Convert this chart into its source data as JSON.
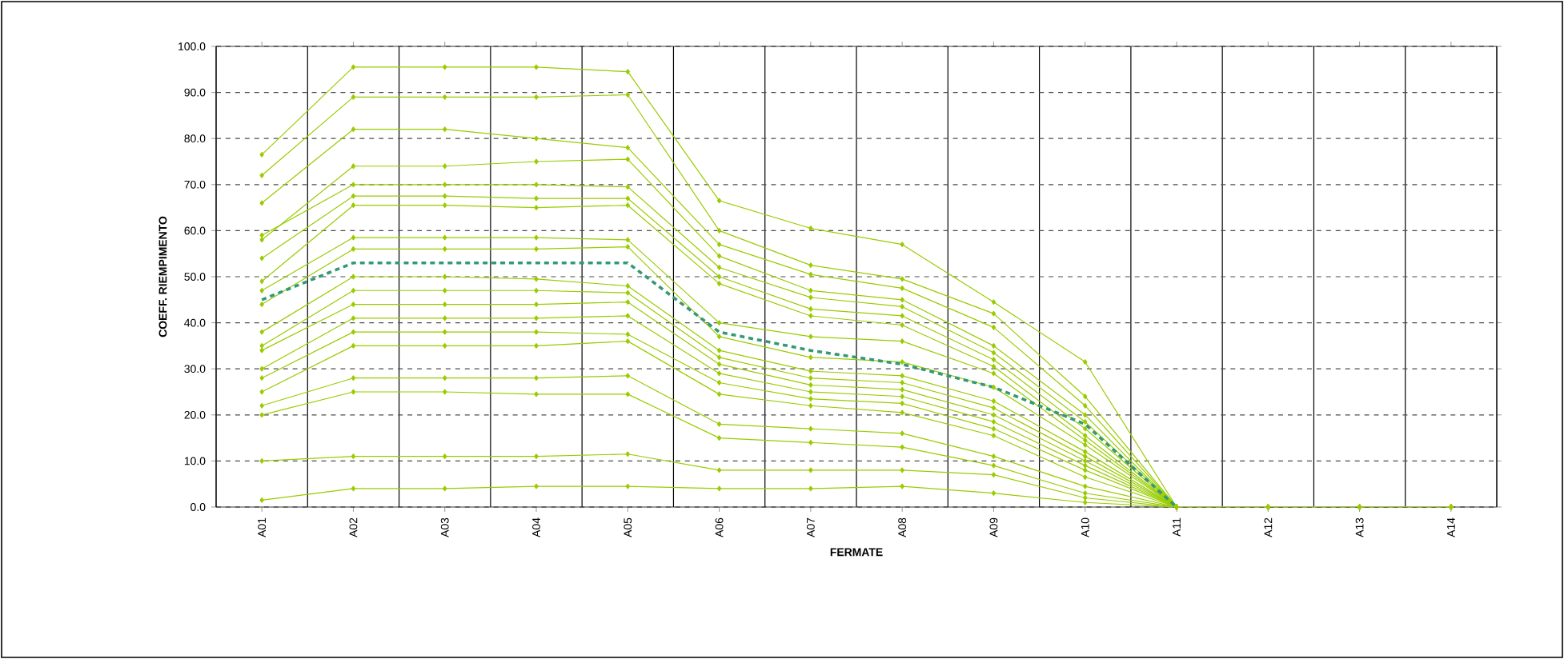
{
  "chart_data": {
    "type": "line",
    "xlabel": "FERMATE",
    "ylabel": "COEFF. RIEMPIMENTO",
    "categories": [
      "A01",
      "A02",
      "A03",
      "A04",
      "A05",
      "A06",
      "A07",
      "A08",
      "A09",
      "A10",
      "A11",
      "A12",
      "A13",
      "A14"
    ],
    "ylim": [
      0,
      100
    ],
    "yticks": [
      {
        "value": 0,
        "label": "0.0"
      },
      {
        "value": 10,
        "label": "10.0"
      },
      {
        "value": 20,
        "label": "20.0"
      },
      {
        "value": 30,
        "label": "30.0"
      },
      {
        "value": 40,
        "label": "40.0"
      },
      {
        "value": 50,
        "label": "50.0"
      },
      {
        "value": 60,
        "label": "60.0"
      },
      {
        "value": 70,
        "label": "70.0"
      },
      {
        "value": 80,
        "label": "80.0"
      },
      {
        "value": 90,
        "label": "90.0"
      },
      {
        "value": 100,
        "label": "100.0"
      }
    ],
    "grid": true,
    "marker": "diamond",
    "line_style": "solid",
    "series": [
      {
        "color": "#99cc00",
        "values": [
          76.5,
          95.5,
          95.5,
          95.5,
          94.5,
          66.5,
          60.5,
          57,
          44.5,
          31.5,
          0,
          0,
          0,
          0
        ]
      },
      {
        "color": "#99cc00",
        "values": [
          72,
          89,
          89,
          89,
          89.5,
          60,
          52.5,
          49.5,
          42,
          24,
          0,
          0,
          0,
          0
        ]
      },
      {
        "color": "#99cc00",
        "values": [
          66,
          82,
          82,
          80,
          78,
          57,
          50.5,
          47.5,
          39,
          22,
          0,
          0,
          0,
          0
        ]
      },
      {
        "color": "#99cc00",
        "values": [
          58,
          74,
          74,
          75,
          75.5,
          54.5,
          47,
          45,
          35,
          20,
          0,
          0,
          0,
          0
        ]
      },
      {
        "color": "#99cc00",
        "values": [
          59,
          70,
          70,
          70,
          69.5,
          52,
          45.5,
          43.5,
          33.5,
          18.5,
          0,
          0,
          0,
          0
        ]
      },
      {
        "color": "#99cc00",
        "values": [
          54,
          67.5,
          67.5,
          67,
          67,
          50,
          43,
          41.5,
          32,
          17,
          0,
          0,
          0,
          0
        ]
      },
      {
        "color": "#99cc00",
        "values": [
          49,
          65.5,
          65.5,
          65,
          65.5,
          48.5,
          41.5,
          39.5,
          30.5,
          15.5,
          0,
          0,
          0,
          0
        ]
      },
      {
        "color": "#99cc00",
        "values": [
          47,
          58.5,
          58.5,
          58.5,
          58,
          40,
          37,
          36,
          29,
          14.5,
          0,
          0,
          0,
          0
        ]
      },
      {
        "color": "#99cc00",
        "values": [
          44,
          56,
          56,
          56,
          56.5,
          37,
          32.5,
          31.5,
          26,
          13.5,
          0,
          0,
          0,
          0
        ]
      },
      {
        "color": "#99cc00",
        "values": [
          38,
          50,
          50,
          49.5,
          48,
          34,
          29.5,
          28.5,
          23,
          12,
          0,
          0,
          0,
          0
        ]
      },
      {
        "color": "#99cc00",
        "values": [
          35,
          47,
          47,
          47,
          46.5,
          32.5,
          28,
          27,
          21.5,
          11,
          0,
          0,
          0,
          0
        ]
      },
      {
        "color": "#99cc00",
        "values": [
          34,
          44,
          44,
          44,
          44.5,
          31,
          26.5,
          25.5,
          20,
          10,
          0,
          0,
          0,
          0
        ]
      },
      {
        "color": "#99cc00",
        "values": [
          30,
          41,
          41,
          41,
          41.5,
          29,
          25,
          24,
          18.5,
          9,
          0,
          0,
          0,
          0
        ]
      },
      {
        "color": "#99cc00",
        "values": [
          28,
          38,
          38,
          38,
          37.5,
          27,
          23.5,
          22.5,
          17,
          8,
          0,
          0,
          0,
          0
        ]
      },
      {
        "color": "#99cc00",
        "values": [
          25,
          35,
          35,
          35,
          36,
          24.5,
          22,
          20.5,
          15.5,
          6.5,
          0,
          0,
          0,
          0
        ]
      },
      {
        "color": "#99cc00",
        "values": [
          22,
          28,
          28,
          28,
          28.5,
          18,
          17,
          16,
          11,
          4.5,
          0,
          0,
          0,
          0
        ]
      },
      {
        "color": "#99cc00",
        "values": [
          20,
          25,
          25,
          24.5,
          24.5,
          15,
          14,
          13,
          9,
          3,
          0,
          0,
          0,
          0
        ]
      },
      {
        "color": "#99cc00",
        "values": [
          10,
          11,
          11,
          11,
          11.5,
          8,
          8,
          8,
          7,
          2,
          0,
          0,
          0,
          0
        ]
      },
      {
        "color": "#99cc00",
        "values": [
          1.5,
          4,
          4,
          4.5,
          4.5,
          4,
          4,
          4.5,
          3,
          1,
          0,
          0,
          0,
          0
        ]
      },
      {
        "color": "#339977",
        "marker": "none",
        "line_style": "dashed",
        "values": [
          45,
          53,
          53,
          53,
          53,
          38,
          34,
          31,
          26,
          18,
          0,
          null,
          null,
          null
        ]
      }
    ]
  }
}
